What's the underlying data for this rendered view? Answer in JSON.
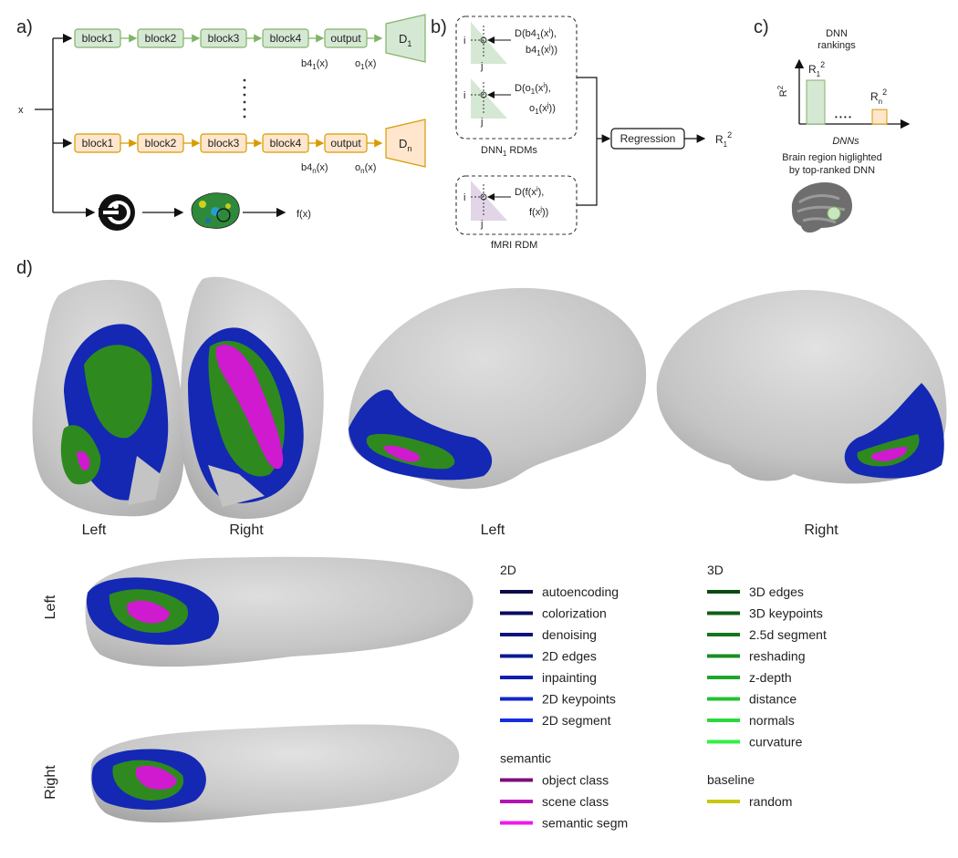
{
  "panel_a": {
    "label": "a)",
    "input": "x",
    "blocks": [
      "block1",
      "block2",
      "block3",
      "block4",
      "output"
    ],
    "disc_top": "D",
    "disc_top_sub": "1",
    "disc_bottom": "D",
    "disc_bottom_sub": "n",
    "top_b4": "b4",
    "top_b4_sub": "1",
    "top_b4_arg": "(x)",
    "top_o": "o",
    "top_o_sub": "1",
    "top_o_arg": "(x)",
    "bot_b4": "b4",
    "bot_b4_sub": "n",
    "bot_b4_arg": "(x)",
    "bot_o": "o",
    "bot_o_sub": "n",
    "bot_o_arg": "(x)",
    "fmri_out": "f(x)",
    "ellipsis": "⋮"
  },
  "panel_b": {
    "label": "b)",
    "rdm1_line1": "D(b4",
    "rdm1_sub1": "1",
    "rdm1_line1b": "(x",
    "rdm1_sup1": "i",
    "rdm1_line1c": "),",
    "rdm1_line2": "b4",
    "rdm1_sub2": "1",
    "rdm1_line2b": "(x",
    "rdm1_sup2": "j",
    "rdm1_line2c": "))",
    "rdm2_line1": "D(o",
    "rdm2_sub1": "1",
    "rdm2_line1b": "(x",
    "rdm2_sup1": "i",
    "rdm2_line1c": "),",
    "rdm2_line2": "o",
    "rdm2_sub2": "1",
    "rdm2_line2b": "(x",
    "rdm2_sup2": "j",
    "rdm2_line2c": "))",
    "rdm3_line1": "D(f(x",
    "rdm3_sup1": "i",
    "rdm3_line1c": "),",
    "rdm3_line2": "f(x",
    "rdm3_sup2": "j",
    "rdm3_line2c": "))",
    "idx_i": "i",
    "idx_j": "j",
    "dnn_caption": "DNN",
    "dnn_caption_sub": "1",
    "dnn_caption_rest": " RDMs",
    "fmri_caption": "fMRI RDM",
    "regression": "Regression",
    "r_out": "R",
    "r_out_sub": "1",
    "r_out_sup": "2"
  },
  "panel_c": {
    "label": "c)",
    "title_line1": "DNN",
    "title_line2": "rankings",
    "ylabel": "R",
    "ylabel_sup": "2",
    "bar1_label": "R",
    "bar1_sub": "1",
    "bar1_sup": "2",
    "barn_label": "R",
    "barn_sub": "n",
    "barn_sup": "2",
    "dots": "• • • •",
    "xlabel": "DNNs",
    "brain_caption_line1": "Brain region higlighted",
    "brain_caption_line2": "by top-ranked DNN",
    "bar_colors": {
      "bar1": "#d5e8d4",
      "barn": "#ffe6cc"
    },
    "bar_values": {
      "bar1": 1.0,
      "barn": 0.33
    }
  },
  "panel_d": {
    "label": "d)",
    "post_left": "Left",
    "post_right": "Right",
    "lat_left": "Left",
    "lat_right": "Right",
    "vent_left": "Left",
    "vent_right": "Right"
  },
  "legend": {
    "groups": [
      {
        "title": "2D",
        "items": [
          {
            "label": "autoencoding",
            "color": "#0a0a4a"
          },
          {
            "label": "colorization",
            "color": "#0b0b5e"
          },
          {
            "label": "denoising",
            "color": "#0c1478"
          },
          {
            "label": "2D edges",
            "color": "#0d1a92"
          },
          {
            "label": "inpainting",
            "color": "#0f1fae"
          },
          {
            "label": "2D keypoints",
            "color": "#1226c8"
          },
          {
            "label": "2D segment",
            "color": "#152ee0"
          }
        ]
      },
      {
        "title": "3D",
        "items": [
          {
            "label": "3D edges",
            "color": "#0b4a12"
          },
          {
            "label": "3D keypoints",
            "color": "#0f5e16"
          },
          {
            "label": "2.5d segment",
            "color": "#13761c"
          },
          {
            "label": "reshading",
            "color": "#178e22"
          },
          {
            "label": "z-depth",
            "color": "#1ca82a"
          },
          {
            "label": "distance",
            "color": "#22c232"
          },
          {
            "label": "normals",
            "color": "#2ad83c"
          },
          {
            "label": "curvature",
            "color": "#34ee48"
          }
        ]
      },
      {
        "title": "semantic",
        "items": [
          {
            "label": "object class",
            "color": "#7a1079"
          },
          {
            "label": "scene class",
            "color": "#b414b4"
          },
          {
            "label": "semantic segm",
            "color": "#ee1aee"
          }
        ]
      },
      {
        "title": "baseline",
        "items": [
          {
            "label": "random",
            "color": "#c8c810"
          }
        ]
      }
    ]
  },
  "colors": {
    "green_fill": "#d5e8d4",
    "green_stroke": "#82b366",
    "orange_fill": "#ffe6cc",
    "orange_stroke": "#d79b00",
    "purple_fill": "#e1d5e7",
    "brain_gray": "#c4c4c4",
    "map_blue": "#1428b4",
    "map_green": "#2e8a1e",
    "map_magenta": "#d01ad0"
  }
}
